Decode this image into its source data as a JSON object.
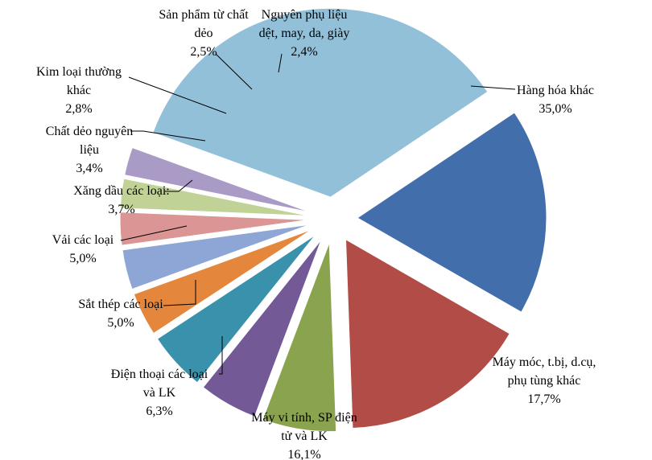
{
  "chart_data": {
    "type": "pie",
    "title": "",
    "slices": [
      {
        "label_lines": [
          "Hàng hóa khác"
        ],
        "value_text": "35,0%",
        "value": 35.0,
        "color": "#93C0D9"
      },
      {
        "label_lines": [
          "Máy móc, t.bị, d.cụ,",
          "phụ tùng khác"
        ],
        "value_text": "17,7%",
        "value": 17.7,
        "color": "#436EAC"
      },
      {
        "label_lines": [
          "Máy vi tính, SP điện",
          "tử và LK"
        ],
        "value_text": "16,1%",
        "value": 16.1,
        "color": "#B24C46"
      },
      {
        "label_lines": [
          "Điện thoại các loại",
          "và LK"
        ],
        "value_text": "6,3%",
        "value": 6.3,
        "color": "#89A34F"
      },
      {
        "label_lines": [
          "Sắt thép các loại"
        ],
        "value_text": "5,0%",
        "value": 5.0,
        "color": "#735996"
      },
      {
        "label_lines": [
          "Vải các loại"
        ],
        "value_text": "5,0%",
        "value": 5.0,
        "color": "#3A91AB"
      },
      {
        "label_lines": [
          "Xăng dầu các loại:"
        ],
        "value_text": "3,7%",
        "value": 3.7,
        "color": "#E4863B"
      },
      {
        "label_lines": [
          "Chất dẻo nguyên",
          "liệu"
        ],
        "value_text": "3,4%",
        "value": 3.4,
        "color": "#8EA6D6"
      },
      {
        "label_lines": [
          "Kim loại thường",
          "khác"
        ],
        "value_text": "2,8%",
        "value": 2.8,
        "color": "#DA9594"
      },
      {
        "label_lines": [
          "Sản phẩm từ chất",
          "dẻo"
        ],
        "value_text": "2,5%",
        "value": 2.5,
        "color": "#C0D295"
      },
      {
        "label_lines": [
          "Nguyên phụ liệu",
          "dệt, may, da, giày"
        ],
        "value_text": "2,4%",
        "value": 2.4,
        "color": "#A99BC6"
      }
    ]
  }
}
